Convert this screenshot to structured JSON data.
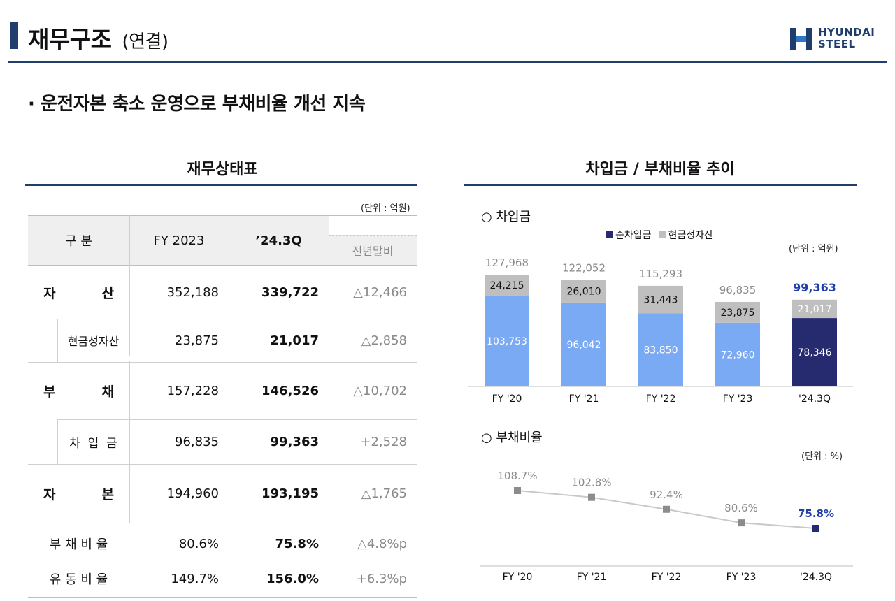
{
  "header": {
    "title": "재무구조",
    "subtitle": "(연결)",
    "logo_line1": "HYUNDAI",
    "logo_line2": "STEEL"
  },
  "headline": "· 운전자본 축소 운영으로 부채비율 개선 지속",
  "balance_sheet": {
    "title": "재무상태표",
    "unit": "(단위 : 억원)",
    "headers": {
      "category": "구 분",
      "fy2023": "FY 2023",
      "q": "’24.3Q",
      "diff": "전년말비"
    },
    "rows": [
      {
        "label": "자          산",
        "fy2023": "352,188",
        "q": "339,722",
        "diff": "△12,466"
      },
      {
        "label": "현금성자산",
        "fy2023": "23,875",
        "q": "21,017",
        "diff": "△2,858"
      },
      {
        "label": "부          채",
        "fy2023": "157,228",
        "q": "146,526",
        "diff": "△10,702"
      },
      {
        "label": "차  입  금",
        "fy2023": "96,835",
        "q": "99,363",
        "diff": "+2,528"
      },
      {
        "label": "자          본",
        "fy2023": "194,960",
        "q": "193,195",
        "diff": "△1,765"
      },
      {
        "label": "부 채 비 율",
        "fy2023": "80.6%",
        "q": "75.8%",
        "diff": "△4.8%p"
      },
      {
        "label": "유 동 비 율",
        "fy2023": "149.7%",
        "q": "156.0%",
        "diff": "+6.3%p"
      }
    ]
  },
  "trend": {
    "title": "차입금 / 부채비율 추이"
  },
  "chart_data": [
    {
      "type": "bar",
      "title": "○ 차입금",
      "unit": "(단위 : 억원)",
      "stacked": true,
      "categories": [
        "FY '20",
        "FY '21",
        "FY '22",
        "FY '23",
        "'24.3Q"
      ],
      "series": [
        {
          "name": "순차입금",
          "values": [
            103753,
            96042,
            83850,
            72960,
            78346
          ]
        },
        {
          "name": "현금성자산",
          "values": [
            24215,
            26010,
            31443,
            23875,
            21017
          ]
        }
      ],
      "totals": [
        127968,
        122052,
        115293,
        96835,
        99363
      ],
      "value_labels": {
        "net": [
          "103,753",
          "96,042",
          "83,850",
          "72,960",
          "78,346"
        ],
        "cash": [
          "24,215",
          "26,010",
          "31,443",
          "23,875",
          "21,017"
        ],
        "total": [
          "127,968",
          "122,052",
          "115,293",
          "96,835",
          "99,363"
        ]
      },
      "colors": {
        "net": "#7aaaf4",
        "net_highlight": "#262a6e",
        "cash": "#bfbfbf",
        "highlight_text": "#1f3fa8"
      },
      "legend_position": "top-right",
      "ylim": [
        0,
        140000
      ]
    },
    {
      "type": "line",
      "title": "○ 부채비율",
      "unit": "(단위 : %)",
      "categories": [
        "FY '20",
        "FY '21",
        "FY '22",
        "FY '23",
        "'24.3Q"
      ],
      "values": [
        108.7,
        102.8,
        92.4,
        80.6,
        75.8
      ],
      "value_labels": [
        "108.7%",
        "102.8%",
        "92.4%",
        "80.6%",
        "75.8%"
      ],
      "colors": {
        "line": "#c8c8c8",
        "marker": "#8c8c8c",
        "highlight": "#262a6e",
        "highlight_text": "#1f3fa8"
      },
      "ylim": [
        60,
        120
      ]
    }
  ]
}
